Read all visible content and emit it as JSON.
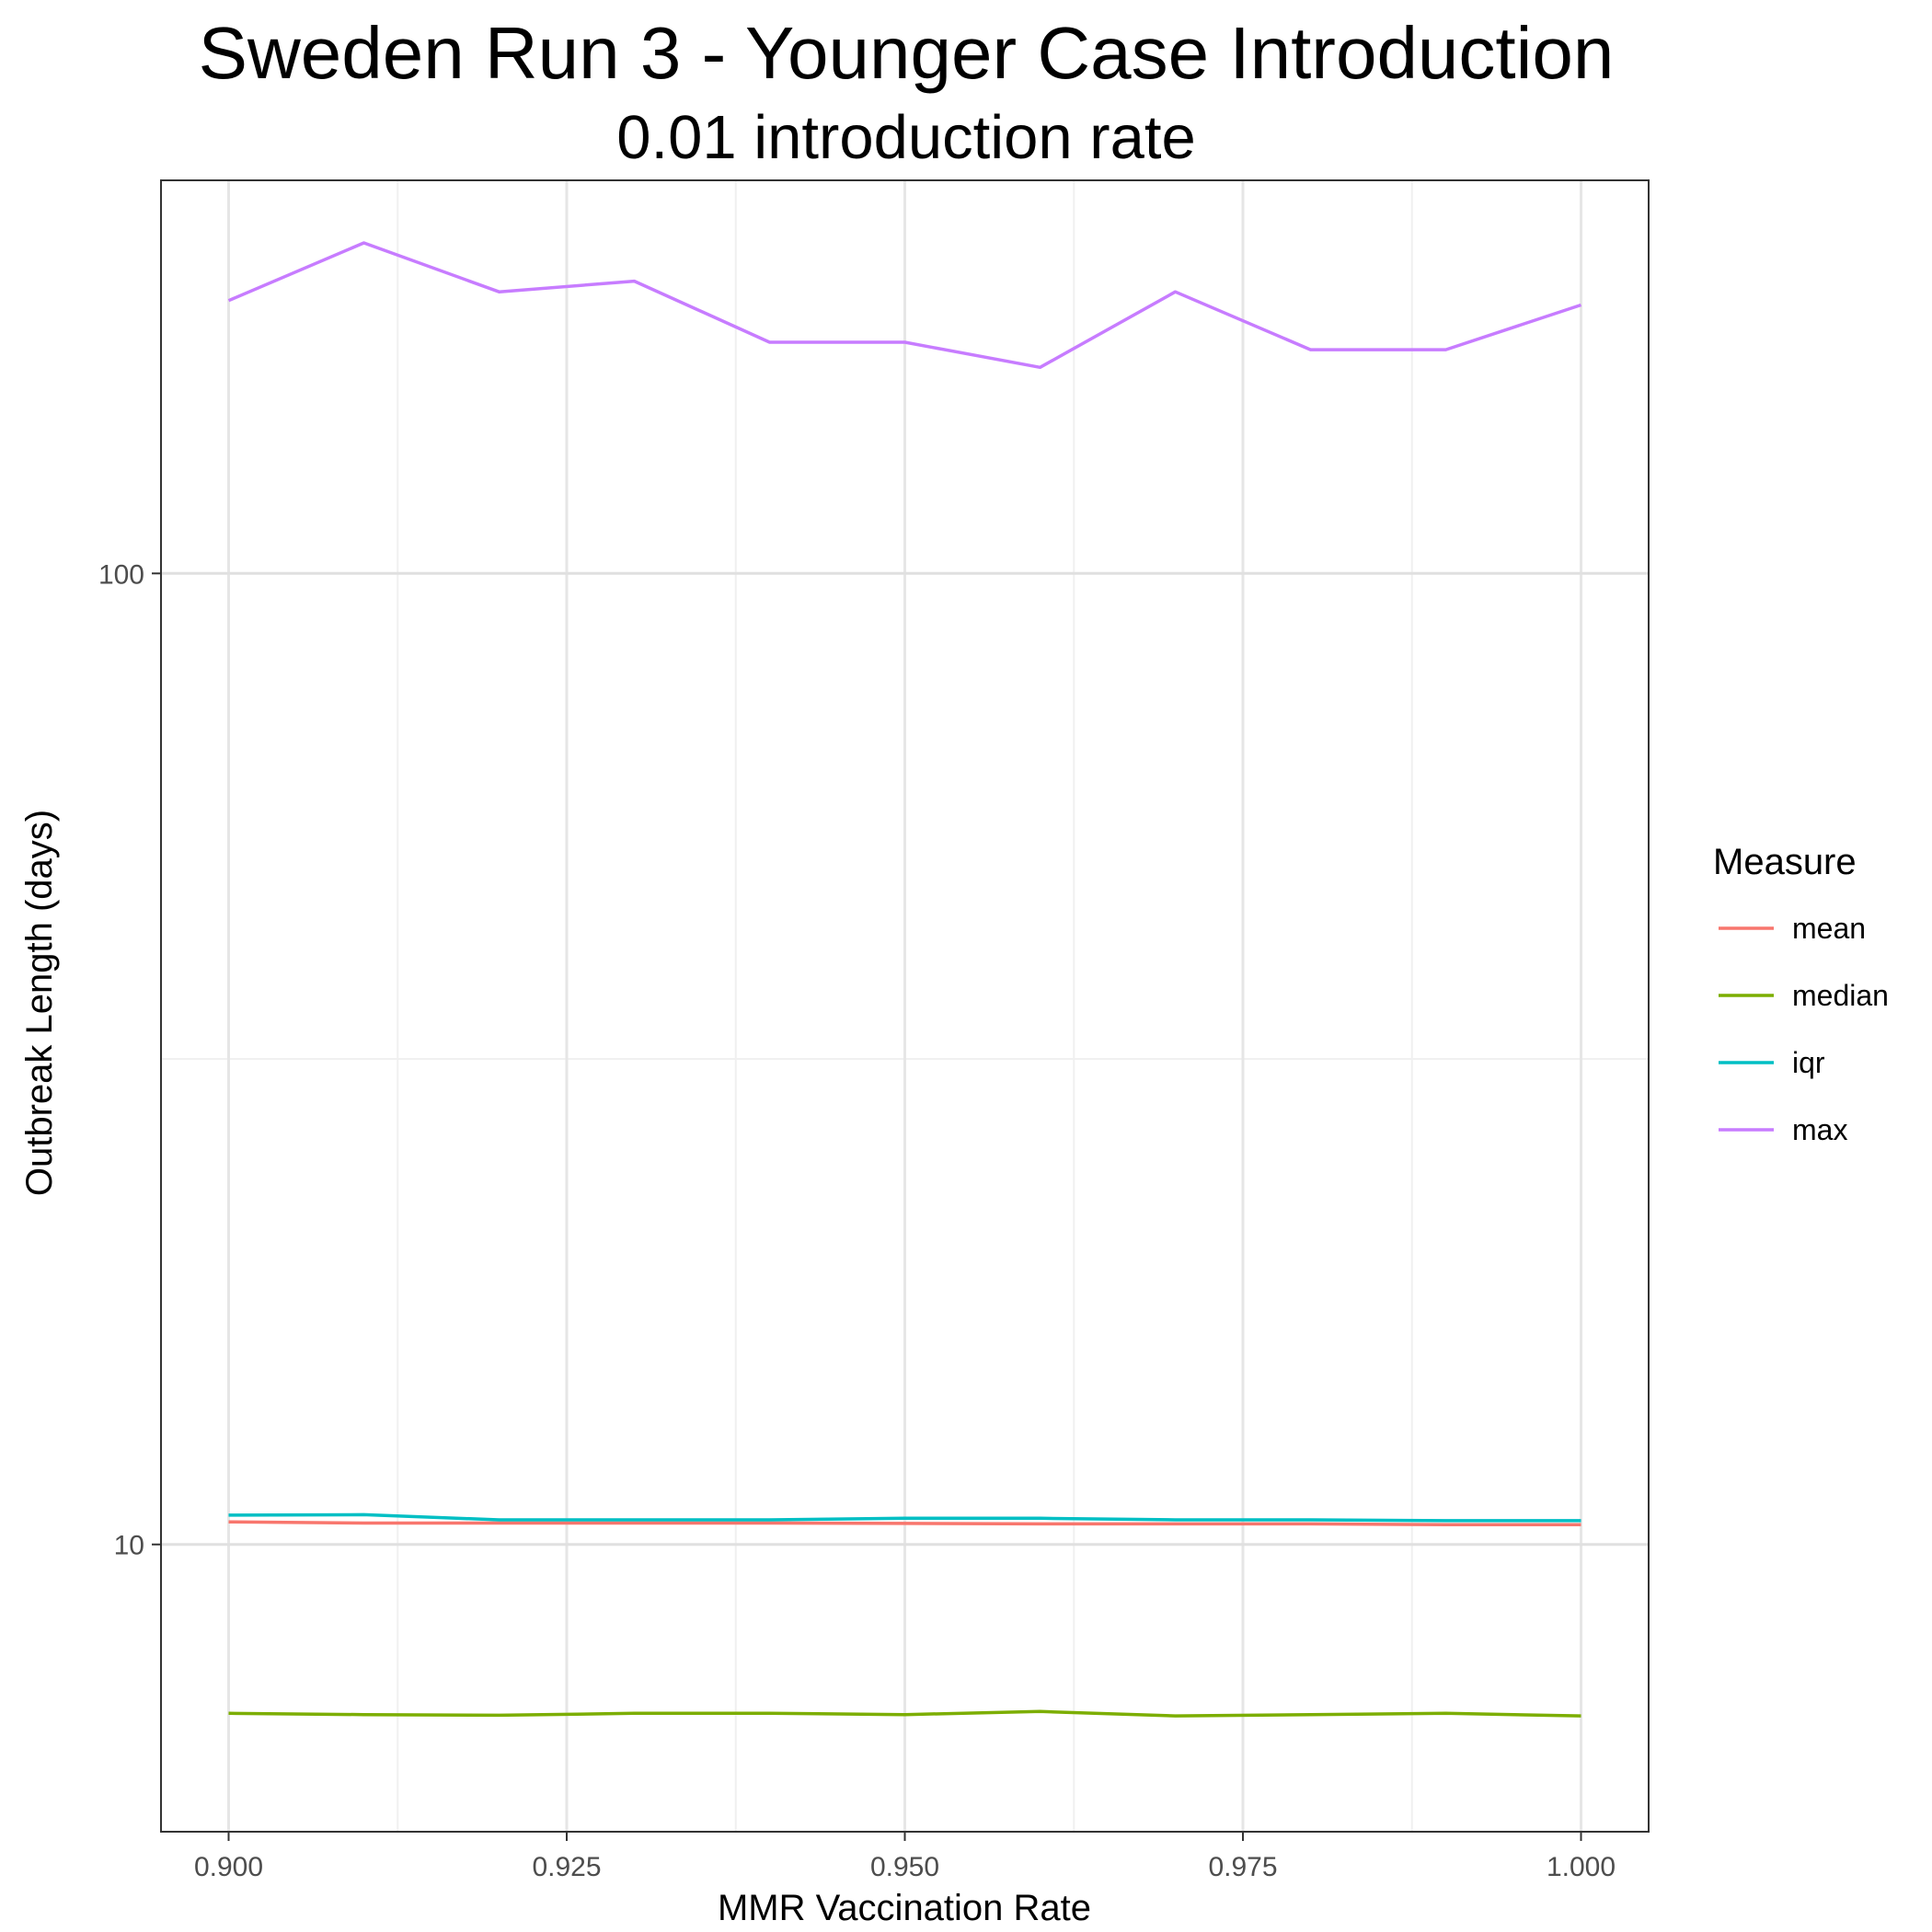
{
  "chart_data": {
    "type": "line",
    "title": "Sweden Run 3 - Younger Case Introduction",
    "subtitle": "0.01 introduction rate",
    "xlabel": "MMR Vaccination Rate",
    "ylabel": "Outbreak Length (days)",
    "yscale": "log10",
    "xlim": [
      0.895,
      1.005
    ],
    "ylim": [
      5.06,
      254
    ],
    "x_ticks": [
      "0.900",
      "0.925",
      "0.950",
      "0.975",
      "1.000"
    ],
    "y_ticks": [
      "10",
      "100"
    ],
    "grid": true,
    "legend_title": "Measure",
    "legend_position": "right",
    "x": [
      0.9,
      0.91,
      0.92,
      0.93,
      0.94,
      0.95,
      0.96,
      0.97,
      0.98,
      0.99,
      1.0
    ],
    "series": [
      {
        "name": "mean",
        "color": "#F8766D",
        "values": [
          10.55,
          10.52,
          10.52,
          10.52,
          10.52,
          10.51,
          10.5,
          10.5,
          10.5,
          10.48,
          10.48
        ]
      },
      {
        "name": "median",
        "color": "#7CAE00",
        "values": [
          6.7,
          6.68,
          6.67,
          6.7,
          6.7,
          6.68,
          6.73,
          6.66,
          6.68,
          6.7,
          6.66
        ]
      },
      {
        "name": "iqr",
        "color": "#00BFC4",
        "values": [
          10.72,
          10.73,
          10.6,
          10.6,
          10.6,
          10.64,
          10.64,
          10.6,
          10.6,
          10.58,
          10.58
        ]
      },
      {
        "name": "max",
        "color": "#C77CFF",
        "values": [
          191,
          219,
          195,
          200,
          173,
          173,
          163,
          195,
          170,
          170,
          189
        ]
      }
    ]
  }
}
